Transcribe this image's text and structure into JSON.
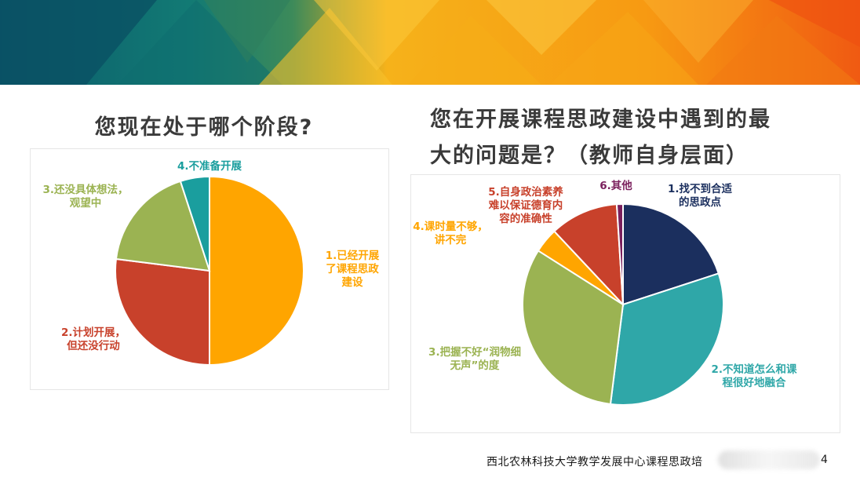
{
  "slide": {
    "footer": "西北农林科技大学教学发展中心课程思政培",
    "page_fragment": "4"
  },
  "chart_data": [
    {
      "type": "pie",
      "title": "您现在处于哪个阶段?",
      "slices": [
        {
          "label": "1.已经开展了课程思政建设",
          "value": 50,
          "color": "#ffa500"
        },
        {
          "label": "2.计划开展，但还没行动",
          "value": 27,
          "color": "#c8412b"
        },
        {
          "label": "3.还没具体想法，观望中",
          "value": 18,
          "color": "#9bb352"
        },
        {
          "label": "4.不准备开展",
          "value": 5,
          "color": "#1a9e9e"
        }
      ],
      "label_lines": [
        [
          "1.已经开展",
          "了课程思政",
          "建设"
        ],
        [
          "2.计划开展，",
          "但还没行动"
        ],
        [
          "3.还没具体想法，",
          "观望中"
        ],
        [
          "4.不准备开展"
        ]
      ]
    },
    {
      "type": "pie",
      "title": "您在开展课程思政建设中遇到的最大的问题是？（教师自身层面）",
      "title_lines": [
        "您在开展课程思政建设中遇到的最",
        "大的问题是？（教师自身层面）"
      ],
      "slices": [
        {
          "label": "1.找不到合适的思政点",
          "value": 20,
          "color": "#1b2f5e"
        },
        {
          "label": "2.不知道怎么和课程很好地融合",
          "value": 32,
          "color": "#2fa7a8"
        },
        {
          "label": "3.把握不好“润物细无声”的度",
          "value": 32,
          "color": "#9bb352"
        },
        {
          "label": "4.课时量不够，讲不完",
          "value": 4,
          "color": "#ffa500"
        },
        {
          "label": "5.自身政治素养难以保证德育内容的准确性",
          "value": 11,
          "color": "#c8412b"
        },
        {
          "label": "6.其他",
          "value": 1,
          "color": "#7a1f5c"
        }
      ],
      "label_lines": [
        [
          "1.找不到合适",
          "的思政点"
        ],
        [
          "2.不知道怎么和课",
          "程很好地融合"
        ],
        [
          "3.把握不好“润物细",
          "无声”的度"
        ],
        [
          "4.课时量不够，",
          "讲不完"
        ],
        [
          "5.自身政治素养",
          "难以保证德育内",
          "容的准确性"
        ],
        [
          "6.其他"
        ]
      ]
    }
  ]
}
